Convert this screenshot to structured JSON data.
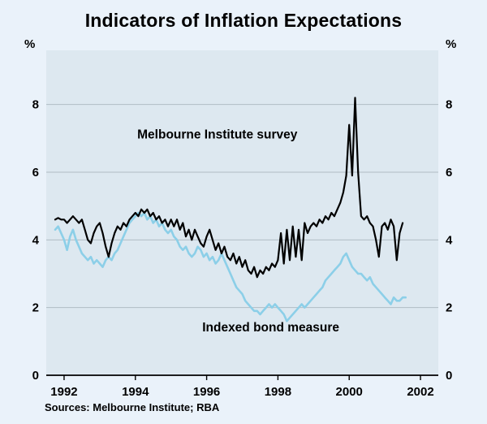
{
  "chart_data": {
    "type": "line",
    "title": "Indicators of Inflation Expectations",
    "unit_left": "%",
    "unit_right": "%",
    "source_note": "Sources: Melbourne Institute; RBA",
    "xlim": [
      1991.5,
      2002.5
    ],
    "ylim": [
      0,
      9.6
    ],
    "yticks": [
      0,
      2,
      4,
      6,
      8
    ],
    "xticks": [
      1992,
      1994,
      1996,
      1998,
      2000,
      2002
    ],
    "grid": true,
    "legend_position": "inline-labels",
    "colors": {
      "background": "#eaf2fa",
      "plot_background": "#dde8f0",
      "gridline": "#9aa4ac",
      "axis": "#000000",
      "survey_line": "#000000",
      "bond_line": "#8ccfe8"
    },
    "series": [
      {
        "name": "Melbourne Institute survey",
        "color": "#000000",
        "width": 2.2,
        "start_year": 1991.75,
        "frequency": "monthly",
        "label": {
          "text": "Melbourne Institute survey",
          "x": 1996.3,
          "y": 7.0
        },
        "values": [
          4.6,
          4.65,
          4.6,
          4.6,
          4.5,
          4.6,
          4.7,
          4.6,
          4.5,
          4.6,
          4.3,
          4.0,
          3.9,
          4.2,
          4.4,
          4.5,
          4.2,
          3.8,
          3.5,
          3.9,
          4.2,
          4.4,
          4.3,
          4.5,
          4.4,
          4.6,
          4.7,
          4.8,
          4.7,
          4.9,
          4.8,
          4.9,
          4.7,
          4.8,
          4.6,
          4.7,
          4.5,
          4.6,
          4.4,
          4.6,
          4.4,
          4.6,
          4.3,
          4.5,
          4.1,
          4.3,
          4.0,
          4.3,
          4.1,
          3.9,
          3.8,
          4.1,
          4.3,
          4.0,
          3.7,
          3.9,
          3.6,
          3.8,
          3.5,
          3.4,
          3.6,
          3.3,
          3.5,
          3.2,
          3.4,
          3.1,
          3.0,
          3.2,
          2.9,
          3.1,
          3.0,
          3.2,
          3.1,
          3.3,
          3.2,
          3.4,
          4.2,
          3.3,
          4.3,
          3.4,
          4.4,
          3.5,
          4.3,
          3.4,
          4.5,
          4.2,
          4.4,
          4.5,
          4.4,
          4.6,
          4.5,
          4.7,
          4.6,
          4.8,
          4.7,
          4.9,
          5.1,
          5.4,
          5.9,
          7.4,
          5.9,
          8.2,
          6.0,
          4.7,
          4.6,
          4.7,
          4.5,
          4.4,
          4.0,
          3.5,
          4.4,
          4.5,
          4.3,
          4.6,
          4.4,
          3.4,
          4.2,
          4.5
        ]
      },
      {
        "name": "Indexed bond measure",
        "color": "#8ccfe8",
        "width": 2.6,
        "start_year": 1991.75,
        "frequency": "monthly",
        "label": {
          "text": "Indexed bond measure",
          "x": 1997.8,
          "y": 1.3
        },
        "values": [
          4.3,
          4.4,
          4.2,
          4.0,
          3.7,
          4.1,
          4.3,
          4.0,
          3.8,
          3.6,
          3.5,
          3.4,
          3.5,
          3.3,
          3.4,
          3.3,
          3.2,
          3.4,
          3.5,
          3.4,
          3.6,
          3.7,
          3.9,
          4.1,
          4.3,
          4.5,
          4.6,
          4.7,
          4.8,
          4.7,
          4.8,
          4.6,
          4.7,
          4.5,
          4.6,
          4.4,
          4.5,
          4.3,
          4.2,
          4.3,
          4.1,
          4.0,
          3.8,
          3.7,
          3.8,
          3.6,
          3.5,
          3.6,
          3.8,
          3.7,
          3.5,
          3.6,
          3.4,
          3.5,
          3.3,
          3.4,
          3.6,
          3.4,
          3.2,
          3.0,
          2.8,
          2.6,
          2.5,
          2.4,
          2.2,
          2.1,
          2.0,
          1.9,
          1.9,
          1.8,
          1.9,
          2.0,
          2.1,
          2.0,
          2.1,
          2.0,
          1.9,
          1.8,
          1.6,
          1.7,
          1.8,
          1.9,
          2.0,
          2.1,
          2.0,
          2.1,
          2.2,
          2.3,
          2.4,
          2.5,
          2.6,
          2.8,
          2.9,
          3.0,
          3.1,
          3.2,
          3.3,
          3.5,
          3.6,
          3.4,
          3.2,
          3.1,
          3.0,
          3.0,
          2.9,
          2.8,
          2.9,
          2.7,
          2.6,
          2.5,
          2.4,
          2.3,
          2.2,
          2.1,
          2.3,
          2.2,
          2.2,
          2.3,
          2.3
        ]
      }
    ]
  }
}
